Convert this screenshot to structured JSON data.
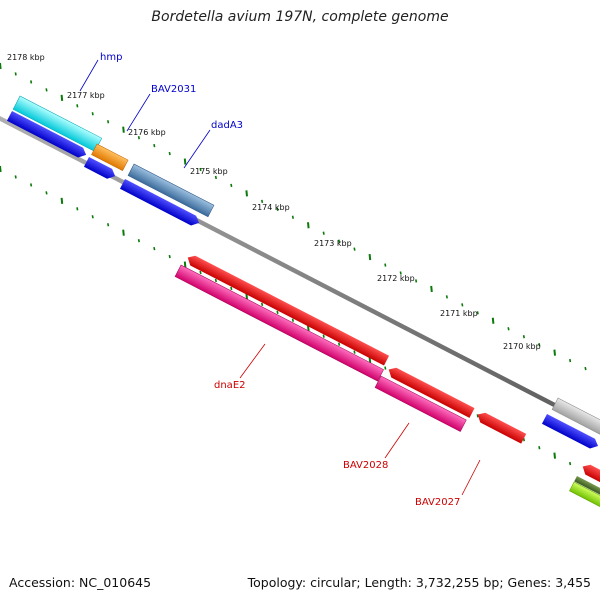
{
  "title": "Bordetella avium 197N, complete genome",
  "footer": {
    "accession": "Accession: NC_010645",
    "summary": "Topology: circular; Length: 3,732,255 bp; Genes: 3,455"
  },
  "colors": {
    "backbone": "#7a7a7a",
    "forward_label": "#0000cc",
    "reverse_label": "#cc0000",
    "tick": "#0a7a0a"
  },
  "ticks": [
    {
      "label": "2178 kbp"
    },
    {
      "label": "2177 kbp"
    },
    {
      "label": "2176 kbp"
    },
    {
      "label": "2175 kbp"
    },
    {
      "label": "2174 kbp"
    },
    {
      "label": "2173 kbp"
    },
    {
      "label": "2172 kbp"
    },
    {
      "label": "2171 kbp"
    },
    {
      "label": "2170 kbp"
    }
  ],
  "genes": [
    {
      "label": "hmp",
      "strand": "forward",
      "color": "#00e0e8"
    },
    {
      "label": "BAV2031",
      "strand": "forward",
      "color": "#f08a00"
    },
    {
      "label": "dadA3",
      "strand": "forward",
      "color": "#4f7fae"
    },
    {
      "label": "dnaE2",
      "strand": "reverse",
      "color": "#e8007a"
    },
    {
      "label": "BAV2028",
      "strand": "reverse",
      "color": "#e8007a"
    },
    {
      "label": "BAV2027",
      "strand": "reverse",
      "color": "#e00000"
    }
  ]
}
